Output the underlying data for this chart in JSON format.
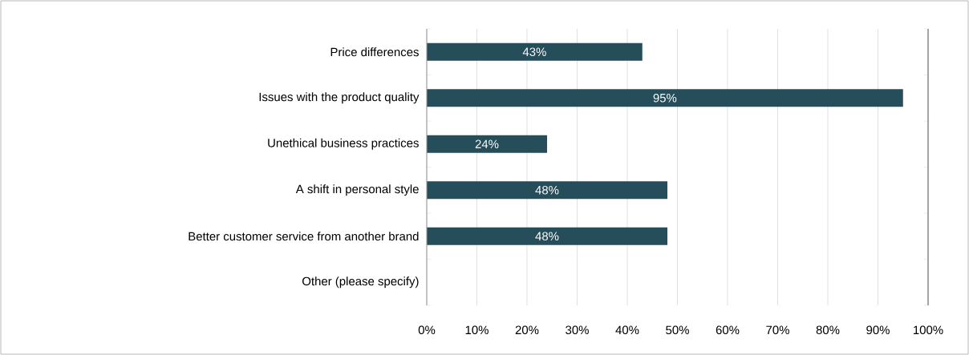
{
  "chart_data": {
    "type": "bar",
    "orientation": "horizontal",
    "categories": [
      "Price differences",
      "Issues with the product quality",
      "Unethical business practices",
      "A shift in personal style",
      "Better customer service from another brand",
      "Other (please specify)"
    ],
    "values": [
      43,
      95,
      24,
      48,
      48,
      0
    ],
    "value_labels": [
      "43%",
      "95%",
      "24%",
      "48%",
      "48%",
      null
    ],
    "color": "#264d5a",
    "xlim": [
      0,
      100
    ],
    "xticks": [
      {
        "value": 0,
        "label": "0%"
      },
      {
        "value": 10,
        "label": "10%"
      },
      {
        "value": 20,
        "label": "20%"
      },
      {
        "value": 30,
        "label": "30%"
      },
      {
        "value": 40,
        "label": "40%"
      },
      {
        "value": 50,
        "label": "50%"
      },
      {
        "value": 60,
        "label": "60%"
      },
      {
        "value": 70,
        "label": "70%"
      },
      {
        "value": 80,
        "label": "80%"
      },
      {
        "value": 90,
        "label": "90%"
      },
      {
        "value": 100,
        "label": "100%"
      }
    ],
    "grid": "x"
  }
}
